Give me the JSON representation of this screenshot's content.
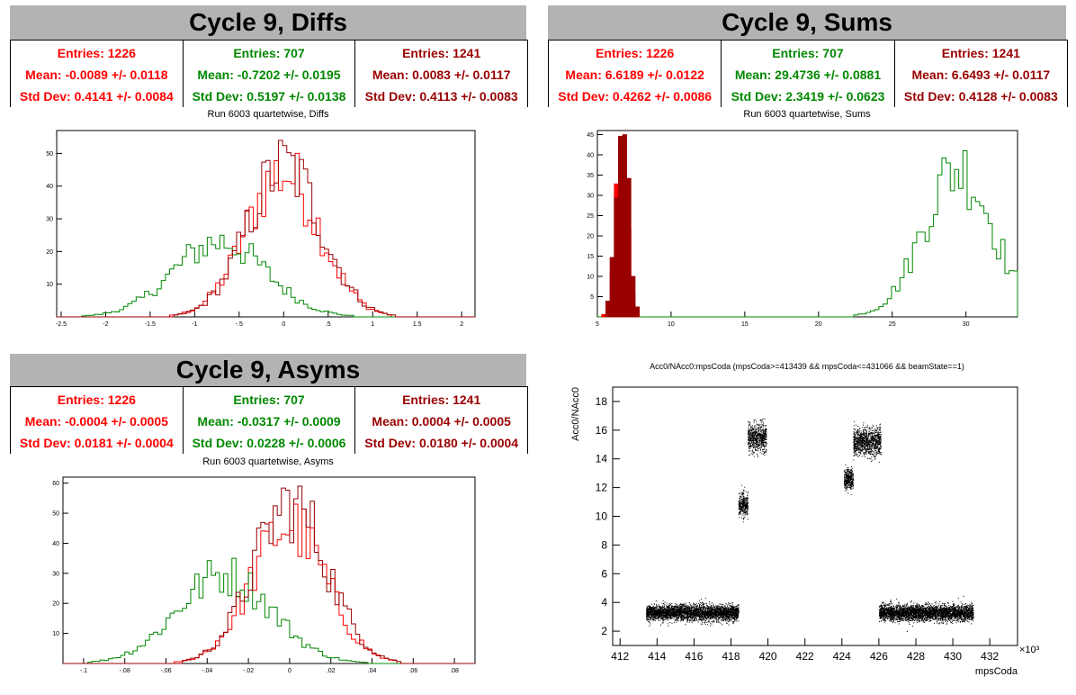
{
  "colors": {
    "red": "#ff0000",
    "green": "#008800",
    "darkred": "#990000",
    "header_bg": "#b3b3b3"
  },
  "panels": {
    "diffs": {
      "header": "Cycle 9, Diffs",
      "stats": [
        {
          "entries": "Entries: 1226",
          "mean": "Mean: -0.0089 +/- 0.0118",
          "std": "Std Dev: 0.4141 +/- 0.0084"
        },
        {
          "entries": "Entries: 707",
          "mean": "Mean: -0.7202 +/- 0.0195",
          "std": "Std Dev: 0.5197 +/- 0.0138"
        },
        {
          "entries": "Entries: 1241",
          "mean": "Mean: 0.0083 +/- 0.0117",
          "std": "Std Dev: 0.4113 +/- 0.0083"
        }
      ],
      "plot_title": "Run 6003 quartetwise, Diffs"
    },
    "sums": {
      "header": "Cycle 9, Sums",
      "stats": [
        {
          "entries": "Entries: 1226",
          "mean": "Mean: 6.6189 +/- 0.0122",
          "std": "Std Dev: 0.4262 +/- 0.0086"
        },
        {
          "entries": "Entries: 707",
          "mean": "Mean: 29.4736 +/- 0.0881",
          "std": "Std Dev: 2.3419 +/- 0.0623"
        },
        {
          "entries": "Entries: 1241",
          "mean": "Mean: 6.6493 +/- 0.0117",
          "std": "Std Dev: 0.4128 +/- 0.0083"
        }
      ],
      "plot_title": "Run 6003 quartetwise, Sums"
    },
    "asyms": {
      "header": "Cycle 9, Asyms",
      "stats": [
        {
          "entries": "Entries: 1226",
          "mean": "Mean: -0.0004 +/- 0.0005",
          "std": "Std Dev: 0.0181 +/- 0.0004"
        },
        {
          "entries": "Entries: 707",
          "mean": "Mean: -0.0317 +/- 0.0009",
          "std": "Std Dev: 0.0228 +/- 0.0006"
        },
        {
          "entries": "Entries: 1241",
          "mean": "Mean: 0.0004 +/- 0.0005",
          "std": "Std Dev: 0.0180 +/- 0.0004"
        }
      ],
      "plot_title": "Run 6003 quartetwise, Asyms"
    },
    "scatter": {
      "plot_title": "Acc0/NAcc0:mpsCoda (mpsCoda>=413439 && mpsCoda<=431066 && beamState==1)"
    }
  },
  "chart_data": [
    {
      "type": "histogram",
      "title": "Run 6003 quartetwise, Diffs",
      "xlim": [
        -2.55,
        2.15
      ],
      "ylim": [
        0,
        57
      ],
      "xticks": [
        -2.5,
        -2,
        -1.5,
        -1,
        -0.5,
        0,
        0.5,
        1,
        1.5,
        2
      ],
      "yticks": [
        10,
        20,
        30,
        40,
        50
      ],
      "series": [
        {
          "color": "#ff0000",
          "mean": -0.0089,
          "std": 0.4141,
          "entries": 1226,
          "peak": 50,
          "style": "steps"
        },
        {
          "color": "#008800",
          "mean": -0.7202,
          "std": 0.5197,
          "entries": 707,
          "peak": 25,
          "style": "steps"
        },
        {
          "color": "#990000",
          "mean": 0.0083,
          "std": 0.4113,
          "entries": 1241,
          "peak": 54,
          "style": "steps"
        }
      ]
    },
    {
      "type": "histogram",
      "title": "Run 6003 quartetwise, Sums",
      "xlim": [
        5,
        33.5
      ],
      "ylim": [
        0,
        46
      ],
      "xticks": [
        5,
        10,
        15,
        20,
        25,
        30
      ],
      "yticks": [
        5,
        10,
        15,
        20,
        25,
        30,
        35,
        40,
        45
      ],
      "series": [
        {
          "color": "#008800",
          "mean": 29.4736,
          "std": 2.3419,
          "entries": 707,
          "peak": 41,
          "style": "steps"
        },
        {
          "color": "#ff0000",
          "mean": 6.6189,
          "std": 0.4262,
          "entries": 1226,
          "peak": 42,
          "style": "bars"
        },
        {
          "color": "#990000",
          "mean": 6.6493,
          "std": 0.4128,
          "entries": 1241,
          "peak": 45,
          "style": "bars"
        }
      ]
    },
    {
      "type": "histogram",
      "title": "Run 6003 quartetwise, Asyms",
      "xlim": [
        -0.11,
        0.09
      ],
      "ylim": [
        0,
        62
      ],
      "xticks": [
        -0.1,
        -0.08,
        -0.06,
        -0.04,
        -0.02,
        0,
        0.02,
        0.04,
        0.06,
        0.08
      ],
      "yticks": [
        10,
        20,
        30,
        40,
        50,
        60
      ],
      "series": [
        {
          "color": "#ff0000",
          "mean": -0.0004,
          "std": 0.0181,
          "entries": 1226,
          "peak": 53,
          "style": "steps"
        },
        {
          "color": "#008800",
          "mean": -0.0317,
          "std": 0.0228,
          "entries": 707,
          "peak": 35,
          "style": "steps"
        },
        {
          "color": "#990000",
          "mean": 0.0004,
          "std": 0.018,
          "entries": 1241,
          "peak": 59,
          "style": "steps"
        }
      ]
    },
    {
      "type": "scatter",
      "title": "Acc0/NAcc0:mpsCoda (mpsCoda>=413439 && mpsCoda<=431066 && beamState==1)",
      "xlabel": "mpsCoda",
      "ylabel": "Acc0/NAcc0",
      "x_exponent_label": "×10³",
      "xlim": [
        411.6,
        433.5
      ],
      "ylim": [
        1,
        19
      ],
      "xticks": [
        412,
        414,
        416,
        418,
        420,
        422,
        424,
        426,
        428,
        430,
        432
      ],
      "yticks": [
        2,
        4,
        6,
        8,
        10,
        12,
        14,
        16,
        18
      ],
      "clusters": [
        {
          "x_range": [
            413.4,
            418.4
          ],
          "y_center": 3.3,
          "y_spread": 0.45
        },
        {
          "x_range": [
            418.4,
            418.9
          ],
          "y_center": 10.8,
          "y_spread": 0.7
        },
        {
          "x_range": [
            418.9,
            419.9
          ],
          "y_center": 15.5,
          "y_spread": 0.8
        },
        {
          "x_range": [
            424.1,
            424.6
          ],
          "y_center": 12.6,
          "y_spread": 0.6
        },
        {
          "x_range": [
            424.6,
            426.1
          ],
          "y_center": 15.2,
          "y_spread": 0.8
        },
        {
          "x_range": [
            426.0,
            431.1
          ],
          "y_center": 3.3,
          "y_spread": 0.45
        }
      ]
    }
  ]
}
